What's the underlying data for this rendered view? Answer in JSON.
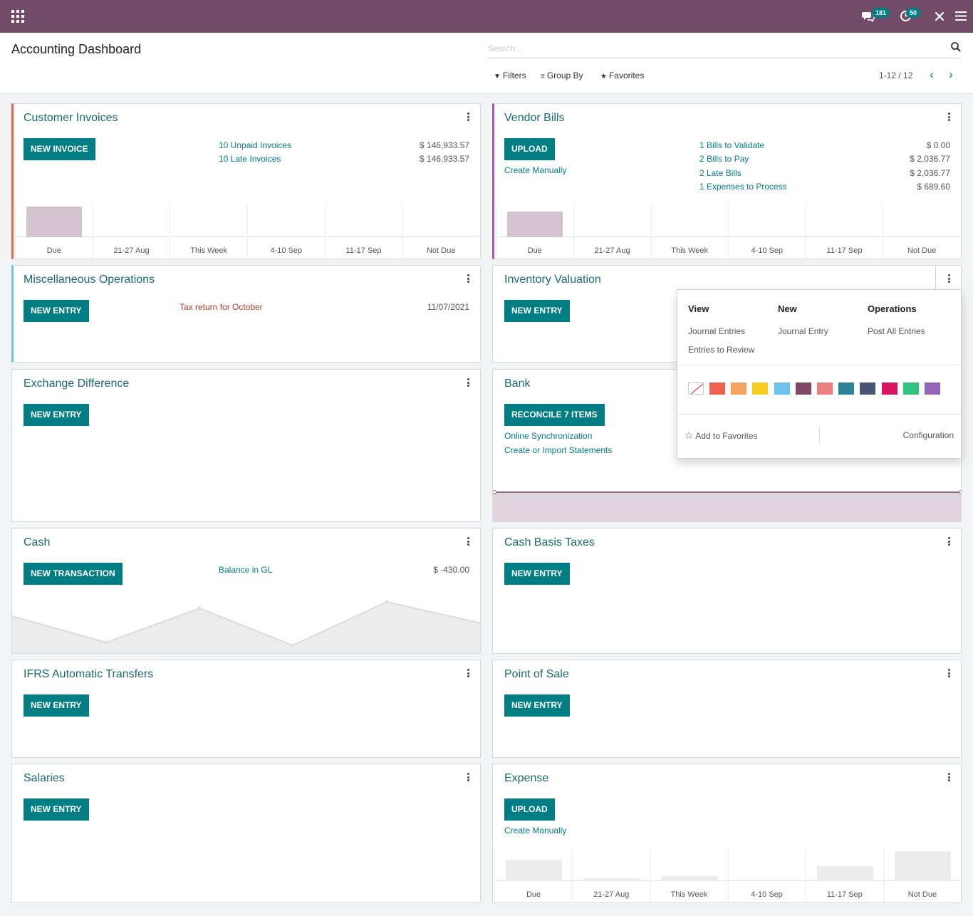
{
  "navbar": {
    "messages_count": "181",
    "activities_count": "50"
  },
  "control_panel": {
    "title": "Accounting Dashboard",
    "search_placeholder": "Search...",
    "filters_label": "Filters",
    "group_by_label": "Group By",
    "favorites_label": "Favorites",
    "pager": "1-12 / 12"
  },
  "chart_bins": [
    "Due",
    "21-27 Aug",
    "This Week",
    "4-10 Sep",
    "11-17 Sep",
    "Not Due"
  ],
  "cards": {
    "customer_invoices": {
      "title": "Customer Invoices",
      "button": "NEW INVOICE",
      "stats": [
        {
          "label": "10 Unpaid Invoices",
          "amount": "$ 146,933.57"
        },
        {
          "label": "10 Late Invoices",
          "amount": "$ 146,933.57"
        }
      ]
    },
    "vendor_bills": {
      "title": "Vendor Bills",
      "button": "UPLOAD",
      "link": "Create Manually",
      "stats": [
        {
          "label": "1 Bills to Validate",
          "amount": "$ 0.00"
        },
        {
          "label": "2 Bills to Pay",
          "amount": "$ 2,036.77"
        },
        {
          "label": "2 Late Bills",
          "amount": "$ 2,036.77"
        },
        {
          "label": "1 Expenses to Process",
          "amount": "$ 689.60"
        }
      ]
    },
    "misc_operations": {
      "title": "Miscellaneous Operations",
      "button": "NEW ENTRY",
      "activity": "Tax return for October",
      "activity_date": "11/07/2021"
    },
    "inventory_valuation": {
      "title": "Inventory Valuation",
      "button": "NEW ENTRY"
    },
    "exchange_difference": {
      "title": "Exchange Difference",
      "button": "NEW ENTRY"
    },
    "bank": {
      "title": "Bank",
      "button": "RECONCILE 7 ITEMS",
      "link1": "Online Synchronization",
      "link2": "Create or Import Statements"
    },
    "cash": {
      "title": "Cash",
      "button": "NEW TRANSACTION",
      "balance_label": "Balance in GL",
      "balance_amount": "$ -430.00"
    },
    "cash_basis_taxes": {
      "title": "Cash Basis Taxes",
      "button": "NEW ENTRY"
    },
    "ifrs": {
      "title": "IFRS Automatic Transfers",
      "button": "NEW ENTRY"
    },
    "point_of_sale": {
      "title": "Point of Sale",
      "button": "NEW ENTRY"
    },
    "salaries": {
      "title": "Salaries",
      "button": "NEW ENTRY"
    },
    "expense": {
      "title": "Expense",
      "button": "UPLOAD",
      "link": "Create Manually"
    }
  },
  "dropdown": {
    "view_header": "View",
    "new_header": "New",
    "operations_header": "Operations",
    "view_items": [
      "Journal Entries",
      "Entries to Review"
    ],
    "new_items": [
      "Journal Entry"
    ],
    "operations_items": [
      "Post All Entries"
    ],
    "colors": [
      "#f06050",
      "#f4a460",
      "#f7cd1f",
      "#6cc1ed",
      "#814968",
      "#eb7e7f",
      "#2c8397",
      "#475577",
      "#d6145f",
      "#30c381",
      "#9365b8"
    ],
    "add_to_favorites": "Add to Favorites",
    "configuration": "Configuration"
  },
  "chart_data": [
    {
      "type": "bar",
      "title": "Customer Invoices",
      "categories": [
        "Due",
        "21-27 Aug",
        "This Week",
        "4-10 Sep",
        "11-17 Sep",
        "Not Due"
      ],
      "values": [
        146933.57,
        0,
        0,
        0,
        0,
        0
      ]
    },
    {
      "type": "bar",
      "title": "Vendor Bills",
      "categories": [
        "Due",
        "21-27 Aug",
        "This Week",
        "4-10 Sep",
        "11-17 Sep",
        "Not Due"
      ],
      "values": [
        2036.77,
        0,
        0,
        0,
        0,
        0
      ]
    },
    {
      "type": "bar",
      "title": "Expense",
      "categories": [
        "Due",
        "21-27 Aug",
        "This Week",
        "4-10 Sep",
        "11-17 Sep",
        "Not Due"
      ],
      "values": [
        32,
        4,
        8,
        0,
        22,
        45
      ]
    }
  ]
}
